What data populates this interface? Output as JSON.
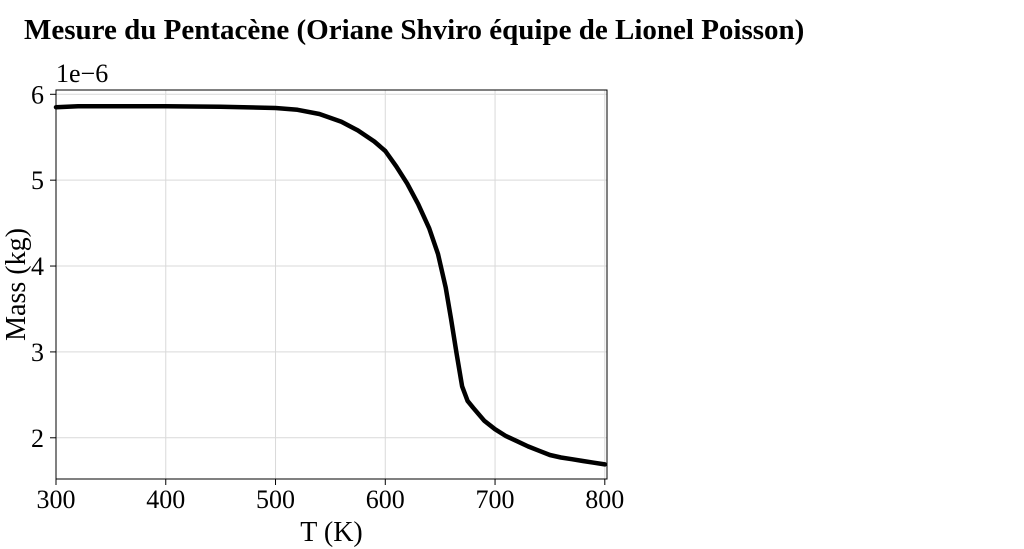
{
  "chart_data": {
    "type": "line",
    "title": "Mesure du Pentacène (Oriane Shviro équipe de Lionel Poisson)",
    "xlabel": "T (K)",
    "ylabel": "Mass (kg)",
    "y_multiplier_label": "1e−6",
    "y_multiplier": 1e-06,
    "xlim": [
      300,
      802
    ],
    "ylim": [
      1.52,
      6.05
    ],
    "xticks": [
      300,
      400,
      500,
      600,
      700,
      800
    ],
    "xtick_labels": [
      "300",
      "400",
      "500",
      "600",
      "700",
      "800"
    ],
    "yticks": [
      2,
      3,
      4,
      5,
      6
    ],
    "ytick_labels": [
      "2",
      "3",
      "4",
      "5",
      "6"
    ],
    "grid": true,
    "line_color": "#000000",
    "grid_color": "#d9d9d9",
    "series": [
      {
        "x": [
          300,
          320,
          350,
          400,
          450,
          500,
          520,
          540,
          560,
          575,
          590,
          600,
          610,
          620,
          630,
          640,
          648,
          655,
          660,
          665,
          670,
          675,
          680,
          690,
          700,
          710,
          720,
          730,
          740,
          750,
          760,
          770,
          780,
          790,
          800
        ],
        "y": [
          5.85,
          5.86,
          5.86,
          5.86,
          5.855,
          5.84,
          5.82,
          5.77,
          5.68,
          5.58,
          5.45,
          5.34,
          5.16,
          4.96,
          4.72,
          4.44,
          4.14,
          3.75,
          3.38,
          2.98,
          2.6,
          2.43,
          2.35,
          2.2,
          2.1,
          2.02,
          1.96,
          1.9,
          1.85,
          1.8,
          1.77,
          1.75,
          1.73,
          1.71,
          1.69
        ]
      }
    ]
  }
}
